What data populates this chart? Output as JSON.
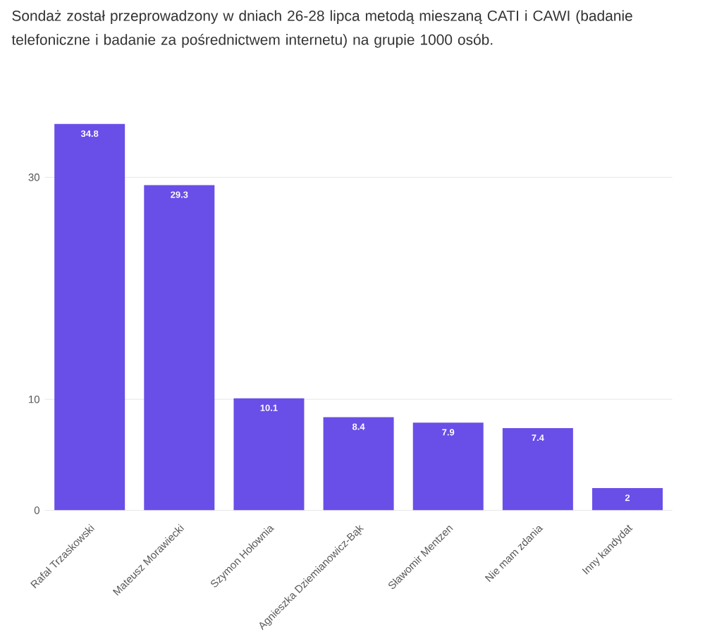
{
  "chart_data": {
    "type": "bar",
    "title": "Sondaż został przeprowadzony w dniach 26-28 lipca metodą mieszaną CATI i CAWI (badanie telefoniczne i badanie za pośrednictwem internetu) na grupie 1000 osób.",
    "categories": [
      "Rafał Trzaskowski",
      "Mateusz Morawiecki",
      "Szymon Hołownia",
      "Agnieszka Dziemianowicz-Bąk",
      "Sławomir Mentzen",
      "Nie mam zdania",
      "Inny kandydat"
    ],
    "values": [
      34.8,
      29.3,
      10.1,
      8.4,
      7.9,
      7.4,
      2
    ],
    "color": "#6a4ee8",
    "ylim": [
      0,
      35
    ],
    "yticks": [
      0,
      10,
      30
    ],
    "grid": "y",
    "data_labels": true
  }
}
